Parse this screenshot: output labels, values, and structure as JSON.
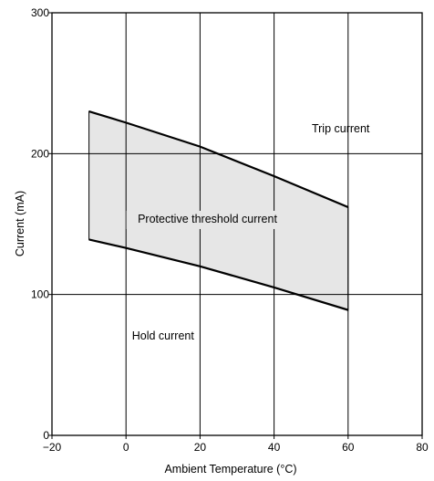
{
  "chart_data": {
    "type": "area",
    "title": "",
    "xlabel": "Ambient Temperature (°C)",
    "ylabel": "Current (mA)",
    "xlim": [
      -20,
      80
    ],
    "ylim": [
      0,
      300
    ],
    "xticks": [
      "−20",
      "0",
      "20",
      "40",
      "60",
      "80"
    ],
    "yticks": [
      "0",
      "100",
      "200",
      "300"
    ],
    "grid": true,
    "series": [
      {
        "name": "Trip current",
        "x": [
          -10,
          0,
          20,
          40,
          60
        ],
        "y": [
          230,
          222,
          205,
          184,
          162
        ]
      },
      {
        "name": "Hold current",
        "x": [
          -10,
          0,
          20,
          40,
          60
        ],
        "y": [
          139,
          133,
          120,
          105,
          89
        ]
      }
    ],
    "band": {
      "label": "Protective threshold current",
      "between": [
        "Trip current",
        "Hold current"
      ],
      "fill": "#e6e6e6"
    },
    "annotations": [
      {
        "text": "Trip current",
        "x": 58,
        "y": 215
      },
      {
        "text": "Protective threshold current",
        "x": 22,
        "y": 151
      },
      {
        "text": "Hold current",
        "x": 10,
        "y": 68
      }
    ]
  }
}
